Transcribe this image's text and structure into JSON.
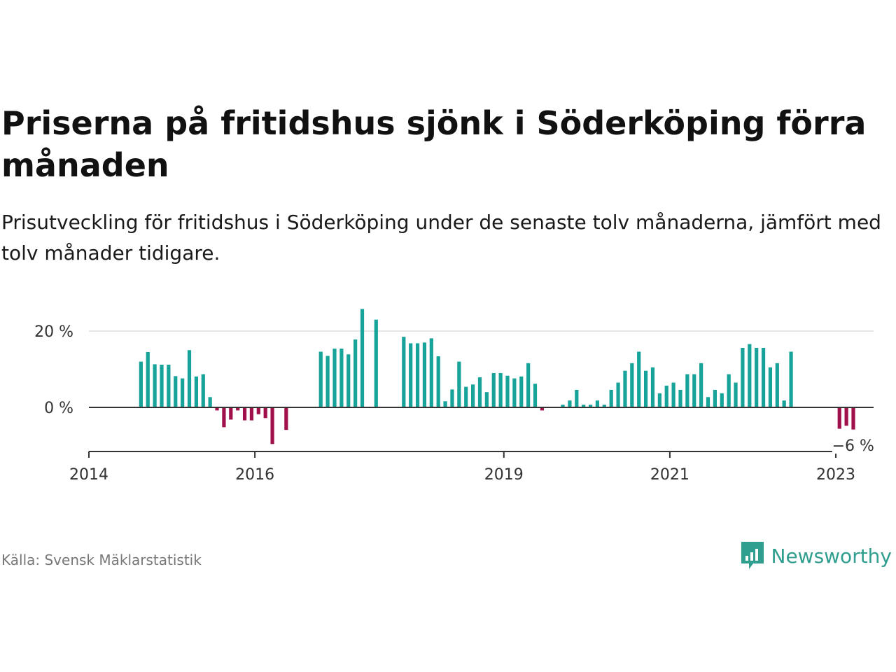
{
  "title": "Priserna på fritidshus sjönk i Söderköping förra månaden",
  "subtitle": "Prisutveckling för fritidshus i Söderköping under de senaste tolv månaderna, jämfört med tolv månader tidigare.",
  "source": "Källa: Svensk Mäklarstatistik",
  "brand": "Newsworthy",
  "colors": {
    "positive": "#17a39a",
    "negative": "#a0104a",
    "brand": "#2f9e8f"
  },
  "chart_data": {
    "type": "bar",
    "y_tick_labels": [
      "20 %",
      "0 %"
    ],
    "y_ticks": [
      20,
      0
    ],
    "ylim": [
      -11.5,
      26
    ],
    "x_tick_labels": [
      "2014",
      "2016",
      "2019",
      "2021",
      "2023"
    ],
    "x_tick_years": [
      2014,
      2016,
      2019,
      2021,
      2023
    ],
    "annotation": "−6 %",
    "grid": true,
    "months": [
      {
        "year": 2014,
        "month": 1,
        "value": null
      },
      {
        "year": 2014,
        "month": 2,
        "value": null
      },
      {
        "year": 2014,
        "month": 3,
        "value": null
      },
      {
        "year": 2014,
        "month": 4,
        "value": null
      },
      {
        "year": 2014,
        "month": 5,
        "value": null
      },
      {
        "year": 2014,
        "month": 6,
        "value": null
      },
      {
        "year": 2014,
        "month": 7,
        "value": null
      },
      {
        "year": 2014,
        "month": 8,
        "value": 12
      },
      {
        "year": 2014,
        "month": 9,
        "value": 14.5
      },
      {
        "year": 2014,
        "month": 10,
        "value": 11.3
      },
      {
        "year": 2014,
        "month": 11,
        "value": 11.2
      },
      {
        "year": 2014,
        "month": 12,
        "value": 11.2
      },
      {
        "year": 2015,
        "month": 1,
        "value": 8.2
      },
      {
        "year": 2015,
        "month": 2,
        "value": 7.6
      },
      {
        "year": 2015,
        "month": 3,
        "value": 15
      },
      {
        "year": 2015,
        "month": 4,
        "value": 8.1
      },
      {
        "year": 2015,
        "month": 5,
        "value": 8.7
      },
      {
        "year": 2015,
        "month": 6,
        "value": 2.7
      },
      {
        "year": 2015,
        "month": 7,
        "value": -0.8
      },
      {
        "year": 2015,
        "month": 8,
        "value": -5.2
      },
      {
        "year": 2015,
        "month": 9,
        "value": -3.2
      },
      {
        "year": 2015,
        "month": 10,
        "value": -0.8
      },
      {
        "year": 2015,
        "month": 11,
        "value": -3.4
      },
      {
        "year": 2015,
        "month": 12,
        "value": -3.4
      },
      {
        "year": 2016,
        "month": 1,
        "value": -1.8
      },
      {
        "year": 2016,
        "month": 2,
        "value": -2.8
      },
      {
        "year": 2016,
        "month": 3,
        "value": -9.6
      },
      {
        "year": 2016,
        "month": 4,
        "value": null
      },
      {
        "year": 2016,
        "month": 5,
        "value": -5.9
      },
      {
        "year": 2016,
        "month": 6,
        "value": null
      },
      {
        "year": 2016,
        "month": 7,
        "value": null
      },
      {
        "year": 2016,
        "month": 8,
        "value": null
      },
      {
        "year": 2016,
        "month": 9,
        "value": null
      },
      {
        "year": 2016,
        "month": 10,
        "value": 14.6
      },
      {
        "year": 2016,
        "month": 11,
        "value": 13.5
      },
      {
        "year": 2016,
        "month": 12,
        "value": 15.4
      },
      {
        "year": 2017,
        "month": 1,
        "value": 15.4
      },
      {
        "year": 2017,
        "month": 2,
        "value": 13.9
      },
      {
        "year": 2017,
        "month": 3,
        "value": 17.8
      },
      {
        "year": 2017,
        "month": 4,
        "value": 25.8
      },
      {
        "year": 2017,
        "month": 5,
        "value": null
      },
      {
        "year": 2017,
        "month": 6,
        "value": 23
      },
      {
        "year": 2017,
        "month": 7,
        "value": null
      },
      {
        "year": 2017,
        "month": 8,
        "value": null
      },
      {
        "year": 2017,
        "month": 9,
        "value": null
      },
      {
        "year": 2017,
        "month": 10,
        "value": 18.5
      },
      {
        "year": 2017,
        "month": 11,
        "value": 16.8
      },
      {
        "year": 2017,
        "month": 12,
        "value": 16.8
      },
      {
        "year": 2018,
        "month": 1,
        "value": 17
      },
      {
        "year": 2018,
        "month": 2,
        "value": 18.1
      },
      {
        "year": 2018,
        "month": 3,
        "value": 13.4
      },
      {
        "year": 2018,
        "month": 4,
        "value": 1.6
      },
      {
        "year": 2018,
        "month": 5,
        "value": 4.7
      },
      {
        "year": 2018,
        "month": 6,
        "value": 12
      },
      {
        "year": 2018,
        "month": 7,
        "value": 5.4
      },
      {
        "year": 2018,
        "month": 8,
        "value": 6
      },
      {
        "year": 2018,
        "month": 9,
        "value": 7.9
      },
      {
        "year": 2018,
        "month": 10,
        "value": 4
      },
      {
        "year": 2018,
        "month": 11,
        "value": 9
      },
      {
        "year": 2018,
        "month": 12,
        "value": 9
      },
      {
        "year": 2019,
        "month": 1,
        "value": 8.3
      },
      {
        "year": 2019,
        "month": 2,
        "value": 7.6
      },
      {
        "year": 2019,
        "month": 3,
        "value": 8.1
      },
      {
        "year": 2019,
        "month": 4,
        "value": 11.6
      },
      {
        "year": 2019,
        "month": 5,
        "value": 6.2
      },
      {
        "year": 2019,
        "month": 6,
        "value": -0.8
      },
      {
        "year": 2019,
        "month": 7,
        "value": null
      },
      {
        "year": 2019,
        "month": 8,
        "value": null
      },
      {
        "year": 2019,
        "month": 9,
        "value": 0.7
      },
      {
        "year": 2019,
        "month": 10,
        "value": 1.8
      },
      {
        "year": 2019,
        "month": 11,
        "value": 4.6
      },
      {
        "year": 2019,
        "month": 12,
        "value": 0.7
      },
      {
        "year": 2020,
        "month": 1,
        "value": 0.7
      },
      {
        "year": 2020,
        "month": 2,
        "value": 1.8
      },
      {
        "year": 2020,
        "month": 3,
        "value": 0.7
      },
      {
        "year": 2020,
        "month": 4,
        "value": 4.6
      },
      {
        "year": 2020,
        "month": 5,
        "value": 6.5
      },
      {
        "year": 2020,
        "month": 6,
        "value": 9.6
      },
      {
        "year": 2020,
        "month": 7,
        "value": 11.6
      },
      {
        "year": 2020,
        "month": 8,
        "value": 14.6
      },
      {
        "year": 2020,
        "month": 9,
        "value": 9.6
      },
      {
        "year": 2020,
        "month": 10,
        "value": 10.5
      },
      {
        "year": 2020,
        "month": 11,
        "value": 3.7
      },
      {
        "year": 2020,
        "month": 12,
        "value": 5.7
      },
      {
        "year": 2021,
        "month": 1,
        "value": 6.5
      },
      {
        "year": 2021,
        "month": 2,
        "value": 4.6
      },
      {
        "year": 2021,
        "month": 3,
        "value": 8.7
      },
      {
        "year": 2021,
        "month": 4,
        "value": 8.7
      },
      {
        "year": 2021,
        "month": 5,
        "value": 11.6
      },
      {
        "year": 2021,
        "month": 6,
        "value": 2.7
      },
      {
        "year": 2021,
        "month": 7,
        "value": 4.6
      },
      {
        "year": 2021,
        "month": 8,
        "value": 3.7
      },
      {
        "year": 2021,
        "month": 9,
        "value": 8.7
      },
      {
        "year": 2021,
        "month": 10,
        "value": 6.5
      },
      {
        "year": 2021,
        "month": 11,
        "value": 15.6
      },
      {
        "year": 2021,
        "month": 12,
        "value": 16.6
      },
      {
        "year": 2022,
        "month": 1,
        "value": 15.6
      },
      {
        "year": 2022,
        "month": 2,
        "value": 15.6
      },
      {
        "year": 2022,
        "month": 3,
        "value": 10.5
      },
      {
        "year": 2022,
        "month": 4,
        "value": 11.6
      },
      {
        "year": 2022,
        "month": 5,
        "value": 1.8
      },
      {
        "year": 2022,
        "month": 6,
        "value": 14.6
      },
      {
        "year": 2022,
        "month": 7,
        "value": null
      },
      {
        "year": 2022,
        "month": 8,
        "value": null
      },
      {
        "year": 2022,
        "month": 9,
        "value": null
      },
      {
        "year": 2022,
        "month": 10,
        "value": null
      },
      {
        "year": 2022,
        "month": 11,
        "value": null
      },
      {
        "year": 2022,
        "month": 12,
        "value": null
      },
      {
        "year": 2023,
        "month": 1,
        "value": -5.6
      },
      {
        "year": 2023,
        "month": 2,
        "value": -4.8
      },
      {
        "year": 2023,
        "month": 3,
        "value": -5.8
      }
    ]
  }
}
